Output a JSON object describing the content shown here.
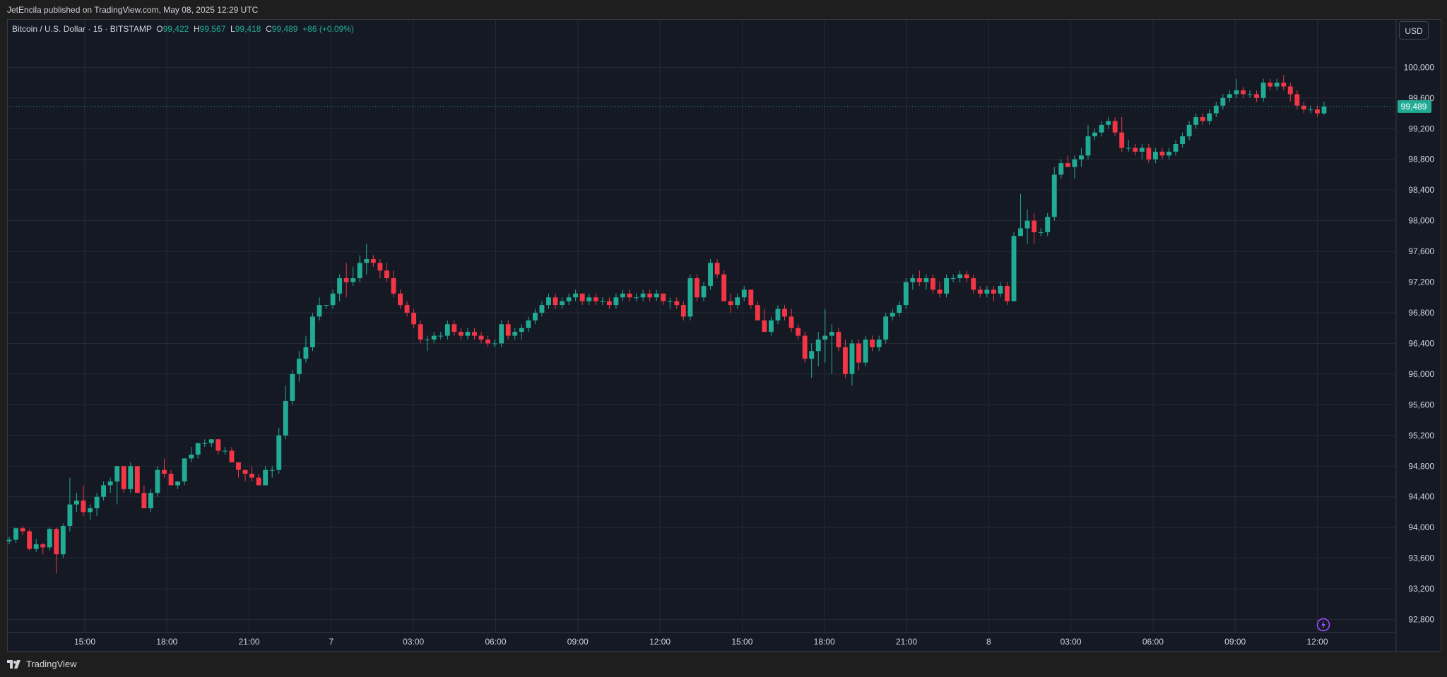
{
  "header": {
    "publish_text": "JetEncila published on TradingView.com, May 08, 2025 12:29 UTC"
  },
  "legend": {
    "symbol": "Bitcoin / U.S. Dollar · 15 · BITSTAMP",
    "open_label": "O",
    "open": "99,422",
    "high_label": "H",
    "high": "99,567",
    "low_label": "L",
    "low": "99,418",
    "close_label": "C",
    "close": "99,489",
    "change": "+86 (+0.09%)"
  },
  "currency": "USD",
  "footer": {
    "brand": "TradingView"
  },
  "colors": {
    "up": "#22ab94",
    "down": "#f23645",
    "background": "#151924",
    "grid": "#262a35",
    "text": "#d1d4dc"
  },
  "chart_data": {
    "type": "candlestick",
    "y_axis": {
      "min": 92800,
      "max": 100200,
      "ticks": [
        92800,
        93200,
        93600,
        94000,
        94400,
        94800,
        95200,
        95600,
        96000,
        96400,
        96800,
        97200,
        97600,
        98000,
        98400,
        98800,
        99200,
        99600,
        100000
      ],
      "position": "right"
    },
    "x_ticks": [
      "15:00",
      "18:00",
      "21:00",
      "7",
      "03:00",
      "06:00",
      "09:00",
      "12:00",
      "15:00",
      "18:00",
      "21:00",
      "8",
      "03:00",
      "06:00",
      "09:00",
      "12:00"
    ],
    "last_price": 99489,
    "last_price_label": "99,489",
    "grid": true,
    "candles": [
      [
        93820,
        93880,
        93780,
        93840
      ],
      [
        93840,
        94000,
        93800,
        93990
      ],
      [
        93990,
        94020,
        93900,
        93950
      ],
      [
        93950,
        93980,
        93700,
        93720
      ],
      [
        93720,
        93850,
        93680,
        93780
      ],
      [
        93780,
        93800,
        93650,
        93740
      ],
      [
        93740,
        94000,
        93700,
        93980
      ],
      [
        93980,
        94000,
        93400,
        93650
      ],
      [
        93650,
        94050,
        93600,
        94020
      ],
      [
        94020,
        94650,
        93950,
        94300
      ],
      [
        94300,
        94450,
        94200,
        94350
      ],
      [
        94350,
        94550,
        94150,
        94200
      ],
      [
        94200,
        94300,
        94100,
        94250
      ],
      [
        94250,
        94450,
        94150,
        94400
      ],
      [
        94400,
        94600,
        94350,
        94550
      ],
      [
        94550,
        94650,
        94450,
        94600
      ],
      [
        94600,
        94800,
        94300,
        94800
      ],
      [
        94800,
        94800,
        94450,
        94500
      ],
      [
        94500,
        94850,
        94450,
        94800
      ],
      [
        94800,
        94800,
        94450,
        94450
      ],
      [
        94450,
        94550,
        94250,
        94250
      ],
      [
        94250,
        94500,
        94200,
        94450
      ],
      [
        94450,
        94800,
        94400,
        94750
      ],
      [
        94750,
        94900,
        94650,
        94700
      ],
      [
        94700,
        94750,
        94550,
        94550
      ],
      [
        94550,
        94600,
        94500,
        94600
      ],
      [
        94600,
        94900,
        94550,
        94900
      ],
      [
        94900,
        95050,
        94850,
        94950
      ],
      [
        94950,
        95100,
        94900,
        95100
      ],
      [
        95100,
        95150,
        95050,
        95100
      ],
      [
        95100,
        95150,
        95050,
        95150
      ],
      [
        95150,
        95150,
        94950,
        95000
      ],
      [
        95000,
        95050,
        94950,
        95000
      ],
      [
        95000,
        95050,
        94850,
        94850
      ],
      [
        94850,
        94850,
        94650,
        94750
      ],
      [
        94750,
        94750,
        94600,
        94700
      ],
      [
        94700,
        94800,
        94600,
        94650
      ],
      [
        94650,
        94700,
        94550,
        94550
      ],
      [
        94550,
        94800,
        94550,
        94750
      ],
      [
        94750,
        94800,
        94650,
        94750
      ],
      [
        94750,
        95300,
        94700,
        95200
      ],
      [
        95200,
        95850,
        95150,
        95650
      ],
      [
        95650,
        96050,
        95600,
        96000
      ],
      [
        96000,
        96300,
        95900,
        96200
      ],
      [
        96200,
        96500,
        96150,
        96350
      ],
      [
        96350,
        96800,
        96300,
        96750
      ],
      [
        96750,
        97000,
        96700,
        96900
      ],
      [
        96900,
        96900,
        96850,
        96900
      ],
      [
        96900,
        97100,
        96850,
        97050
      ],
      [
        97050,
        97300,
        96950,
        97250
      ],
      [
        97250,
        97450,
        97000,
        97200
      ],
      [
        97200,
        97400,
        97150,
        97250
      ],
      [
        97250,
        97550,
        97200,
        97450
      ],
      [
        97450,
        97700,
        97300,
        97500
      ],
      [
        97500,
        97550,
        97400,
        97450
      ],
      [
        97450,
        97500,
        97250,
        97350
      ],
      [
        97350,
        97450,
        97200,
        97250
      ],
      [
        97250,
        97350,
        97000,
        97050
      ],
      [
        97050,
        97100,
        96850,
        96900
      ],
      [
        96900,
        96950,
        96750,
        96800
      ],
      [
        96800,
        96850,
        96600,
        96650
      ],
      [
        96650,
        96700,
        96400,
        96450
      ],
      [
        96450,
        96500,
        96300,
        96450
      ],
      [
        96450,
        96550,
        96400,
        96500
      ],
      [
        96500,
        96550,
        96450,
        96500
      ],
      [
        96500,
        96700,
        96450,
        96650
      ],
      [
        96650,
        96700,
        96500,
        96550
      ],
      [
        96550,
        96600,
        96450,
        96500
      ],
      [
        96500,
        96600,
        96450,
        96550
      ],
      [
        96550,
        96600,
        96450,
        96500
      ],
      [
        96500,
        96550,
        96400,
        96450
      ],
      [
        96450,
        96500,
        96350,
        96400
      ],
      [
        96400,
        96450,
        96350,
        96400
      ],
      [
        96400,
        96700,
        96350,
        96650
      ],
      [
        96650,
        96700,
        96450,
        96500
      ],
      [
        96500,
        96600,
        96450,
        96550
      ],
      [
        96550,
        96650,
        96450,
        96600
      ],
      [
        96600,
        96750,
        96550,
        96700
      ],
      [
        96700,
        96850,
        96650,
        96800
      ],
      [
        96800,
        96950,
        96750,
        96900
      ],
      [
        96900,
        97050,
        96850,
        97000
      ],
      [
        97000,
        97050,
        96850,
        96900
      ],
      [
        96900,
        97000,
        96850,
        96950
      ],
      [
        96950,
        97050,
        96900,
        97000
      ],
      [
        97000,
        97100,
        96950,
        97050
      ],
      [
        97050,
        97050,
        96900,
        96950
      ],
      [
        96950,
        97050,
        96900,
        97000
      ],
      [
        97000,
        97050,
        96900,
        96950
      ],
      [
        96950,
        97000,
        96900,
        96950
      ],
      [
        96950,
        97000,
        96850,
        96900
      ],
      [
        96900,
        97050,
        96850,
        97000
      ],
      [
        97000,
        97100,
        96950,
        97050
      ],
      [
        97050,
        97100,
        96950,
        97000
      ],
      [
        97000,
        97050,
        96950,
        97000
      ],
      [
        97000,
        97100,
        96950,
        97050
      ],
      [
        97050,
        97100,
        96950,
        97000
      ],
      [
        97000,
        97100,
        96950,
        97050
      ],
      [
        97050,
        97050,
        96900,
        96950
      ],
      [
        96950,
        97000,
        96850,
        96950
      ],
      [
        96950,
        97000,
        96850,
        96900
      ],
      [
        96900,
        96950,
        96700,
        96750
      ],
      [
        96750,
        97300,
        96700,
        97250
      ],
      [
        97250,
        97300,
        96950,
        97000
      ],
      [
        97000,
        97200,
        96950,
        97150
      ],
      [
        97150,
        97500,
        97100,
        97450
      ],
      [
        97450,
        97500,
        97250,
        97300
      ],
      [
        97300,
        97350,
        96950,
        96950
      ],
      [
        96950,
        97050,
        96800,
        96900
      ],
      [
        96900,
        97050,
        96850,
        97000
      ],
      [
        97000,
        97150,
        96950,
        97100
      ],
      [
        97100,
        97100,
        96850,
        96900
      ],
      [
        96900,
        96950,
        96700,
        96700
      ],
      [
        96700,
        96850,
        96550,
        96550
      ],
      [
        96550,
        96750,
        96500,
        96700
      ],
      [
        96700,
        96900,
        96650,
        96850
      ],
      [
        96850,
        96900,
        96700,
        96750
      ],
      [
        96750,
        96850,
        96550,
        96600
      ],
      [
        96600,
        96650,
        96450,
        96500
      ],
      [
        96500,
        96550,
        96150,
        96200
      ],
      [
        96200,
        96400,
        95950,
        96300
      ],
      [
        96300,
        96550,
        96100,
        96450
      ],
      [
        96450,
        96850,
        96150,
        96500
      ],
      [
        96500,
        96650,
        96000,
        96550
      ],
      [
        96550,
        96600,
        96300,
        96350
      ],
      [
        96350,
        96450,
        95950,
        96000
      ],
      [
        96000,
        96450,
        95850,
        96400
      ],
      [
        96400,
        96450,
        96050,
        96150
      ],
      [
        96150,
        96500,
        96100,
        96450
      ],
      [
        96450,
        96500,
        96300,
        96350
      ],
      [
        96350,
        96500,
        96300,
        96450
      ],
      [
        96450,
        96800,
        96400,
        96750
      ],
      [
        96750,
        96850,
        96700,
        96800
      ],
      [
        96800,
        96950,
        96750,
        96900
      ],
      [
        96900,
        97250,
        96850,
        97200
      ],
      [
        97200,
        97300,
        97100,
        97250
      ],
      [
        97250,
        97350,
        97150,
        97200
      ],
      [
        97200,
        97300,
        97100,
        97250
      ],
      [
        97250,
        97300,
        97050,
        97100
      ],
      [
        97100,
        97200,
        97000,
        97050
      ],
      [
        97050,
        97300,
        97000,
        97250
      ],
      [
        97250,
        97300,
        97200,
        97250
      ],
      [
        97250,
        97350,
        97200,
        97300
      ],
      [
        97300,
        97350,
        97200,
        97250
      ],
      [
        97250,
        97300,
        97050,
        97100
      ],
      [
        97100,
        97150,
        97000,
        97050
      ],
      [
        97050,
        97150,
        97000,
        97100
      ],
      [
        97100,
        97150,
        96950,
        97050
      ],
      [
        97050,
        97200,
        97000,
        97150
      ],
      [
        97150,
        97200,
        96900,
        96950
      ],
      [
        96950,
        97850,
        96950,
        97800
      ],
      [
        97800,
        98350,
        97850,
        97900
      ],
      [
        97900,
        98150,
        97700,
        98000
      ],
      [
        98000,
        98100,
        97700,
        97850
      ],
      [
        97850,
        97900,
        97800,
        97850
      ],
      [
        97850,
        98100,
        97800,
        98050
      ],
      [
        98050,
        98700,
        98000,
        98600
      ],
      [
        98600,
        98800,
        98550,
        98750
      ],
      [
        98750,
        98850,
        98700,
        98700
      ],
      [
        98700,
        98850,
        98550,
        98800
      ],
      [
        98800,
        98950,
        98700,
        98850
      ],
      [
        98850,
        99250,
        98800,
        99100
      ],
      [
        99100,
        99200,
        99050,
        99150
      ],
      [
        99150,
        99300,
        99100,
        99250
      ],
      [
        99250,
        99350,
        99200,
        99300
      ],
      [
        99300,
        99350,
        99100,
        99150
      ],
      [
        99150,
        99350,
        98900,
        98950
      ],
      [
        98950,
        99050,
        98900,
        98950
      ],
      [
        98950,
        99000,
        98850,
        98900
      ],
      [
        98900,
        99000,
        98800,
        98950
      ],
      [
        98950,
        99000,
        98750,
        98800
      ],
      [
        98800,
        98950,
        98750,
        98900
      ],
      [
        98900,
        98950,
        98800,
        98850
      ],
      [
        98850,
        98950,
        98800,
        98900
      ],
      [
        98900,
        99050,
        98850,
        99000
      ],
      [
        99000,
        99150,
        98950,
        99100
      ],
      [
        99100,
        99300,
        99050,
        99250
      ],
      [
        99250,
        99400,
        99200,
        99350
      ],
      [
        99350,
        99400,
        99250,
        99300
      ],
      [
        99300,
        99450,
        99250,
        99400
      ],
      [
        99400,
        99550,
        99350,
        99500
      ],
      [
        99500,
        99650,
        99450,
        99600
      ],
      [
        99600,
        99700,
        99550,
        99650
      ],
      [
        99650,
        99850,
        99600,
        99700
      ],
      [
        99700,
        99750,
        99600,
        99650
      ],
      [
        99650,
        99700,
        99600,
        99650
      ],
      [
        99650,
        99700,
        99550,
        99600
      ],
      [
        99600,
        99850,
        99550,
        99800
      ],
      [
        99800,
        99850,
        99700,
        99750
      ],
      [
        99750,
        99850,
        99700,
        99800
      ],
      [
        99800,
        99900,
        99700,
        99750
      ],
      [
        99750,
        99800,
        99550,
        99650
      ],
      [
        99650,
        99700,
        99450,
        99500
      ],
      [
        99500,
        99550,
        99400,
        99450
      ],
      [
        99450,
        99500,
        99400,
        99450
      ],
      [
        99450,
        99500,
        99350,
        99400
      ],
      [
        99400,
        99550,
        99380,
        99489
      ]
    ]
  }
}
